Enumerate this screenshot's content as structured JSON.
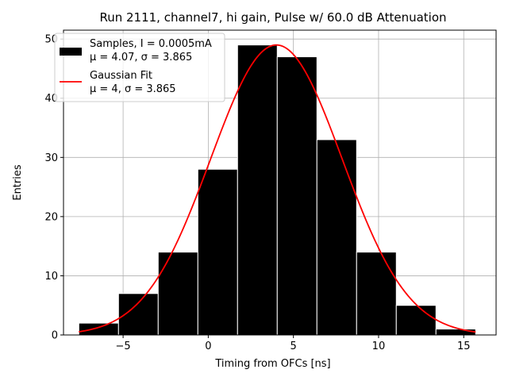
{
  "chart_data": {
    "type": "bar",
    "title": "Run 2111, channel7, hi gain, Pulse w/ 60.0 dB Attenuation",
    "xlabel": "Timing from OFCs [ns]",
    "ylabel": "Entries",
    "xlim": [
      -8.5,
      16.9
    ],
    "ylim": [
      0,
      51.5
    ],
    "xticks": [
      -5,
      0,
      5,
      10,
      15
    ],
    "yticks": [
      0,
      10,
      20,
      30,
      40,
      50
    ],
    "grid": true,
    "legend_position": "top-left",
    "bin_edges": [
      -7.6,
      -5.27,
      -2.94,
      -0.61,
      1.72,
      4.05,
      6.38,
      8.71,
      11.04,
      13.37,
      15.7
    ],
    "values": [
      2,
      7,
      14,
      28,
      49,
      47,
      33,
      14,
      5,
      1
    ],
    "series": [
      {
        "name": "Samples, I = 0.0005mA",
        "stats": "μ = 4.07, σ = 3.865",
        "kind": "histogram",
        "color": "#000000"
      },
      {
        "name": "Gaussian Fit",
        "stats": "μ = 4, σ = 3.865",
        "kind": "line",
        "color": "#ff0000",
        "amplitude": 49,
        "mu": 4.0,
        "sigma": 3.865,
        "x_range": [
          -7.6,
          15.7
        ]
      }
    ]
  }
}
